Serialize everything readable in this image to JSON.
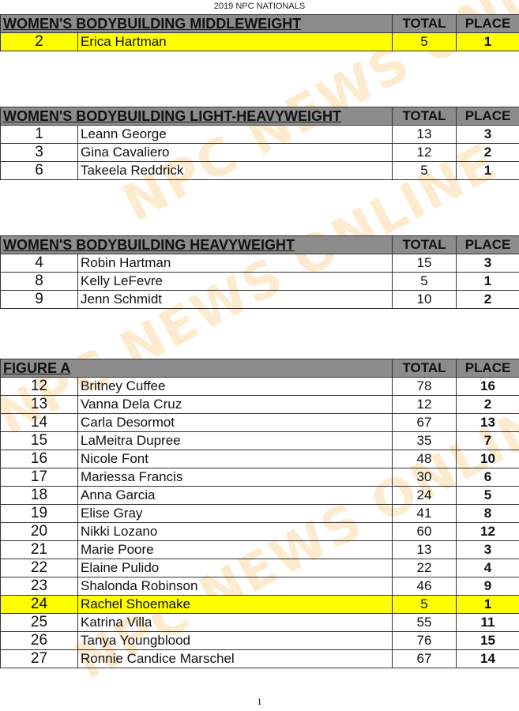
{
  "document_title": "2019 NPC NATIONALS",
  "page_number": "1",
  "watermark": "NPC NEWS ONLINE",
  "highlight_color": "#ffff00",
  "header_color": "#8c8c8c",
  "column_headers": {
    "total": "TOTAL",
    "place": "PLACE"
  },
  "classes": [
    {
      "title": "WOMEN'S BODYBUILDING MIDDLEWEIGHT",
      "rows": [
        {
          "num": "2",
          "name": "Erica Hartman",
          "total": "5",
          "place": "1",
          "highlight": true
        }
      ]
    },
    {
      "title": "WOMEN'S BODYBUILDING LIGHT-HEAVYWEIGHT",
      "rows": [
        {
          "num": "1",
          "name": "Leann George",
          "total": "13",
          "place": "3"
        },
        {
          "num": "3",
          "name": "Gina Cavaliero",
          "total": "12",
          "place": "2"
        },
        {
          "num": "6",
          "name": "Takeela Reddrick",
          "total": "5",
          "place": "1"
        }
      ]
    },
    {
      "title": "WOMEN'S BODYBUILDING HEAVYWEIGHT",
      "rows": [
        {
          "num": "4",
          "name": "Robin Hartman",
          "total": "15",
          "place": "3"
        },
        {
          "num": "8",
          "name": "Kelly LeFevre",
          "total": "5",
          "place": "1"
        },
        {
          "num": "9",
          "name": "Jenn Schmidt",
          "total": "10",
          "place": "2"
        }
      ]
    },
    {
      "title": "FIGURE A",
      "rows": [
        {
          "num": "12",
          "name": "Britney Cuffee",
          "total": "78",
          "place": "16"
        },
        {
          "num": "13",
          "name": "Vanna Dela Cruz",
          "total": "12",
          "place": "2"
        },
        {
          "num": "14",
          "name": "Carla Desormot",
          "total": "67",
          "place": "13"
        },
        {
          "num": "15",
          "name": "LaMeitra Dupree",
          "total": "35",
          "place": "7"
        },
        {
          "num": "16",
          "name": "Nicole Font",
          "total": "48",
          "place": "10"
        },
        {
          "num": "17",
          "name": "Mariessa Francis",
          "total": "30",
          "place": "6"
        },
        {
          "num": "18",
          "name": "Anna Garcia",
          "total": "24",
          "place": "5"
        },
        {
          "num": "19",
          "name": "Elise Gray",
          "total": "41",
          "place": "8"
        },
        {
          "num": "20",
          "name": "Nikki Lozano",
          "total": "60",
          "place": "12"
        },
        {
          "num": "21",
          "name": "Marie Poore",
          "total": "13",
          "place": "3"
        },
        {
          "num": "22",
          "name": "Elaine Pulido",
          "total": "22",
          "place": "4"
        },
        {
          "num": "23",
          "name": "Shalonda Robinson",
          "total": "46",
          "place": "9"
        },
        {
          "num": "24",
          "name": "Rachel Shoemake",
          "total": "5",
          "place": "1",
          "highlight": true
        },
        {
          "num": "25",
          "name": "Katrina Villa",
          "total": "55",
          "place": "11"
        },
        {
          "num": "26",
          "name": "Tanya Youngblood",
          "total": "76",
          "place": "15"
        },
        {
          "num": "27",
          "name": "Ronnie Candice Marschel",
          "total": "67",
          "place": "14"
        }
      ]
    }
  ]
}
